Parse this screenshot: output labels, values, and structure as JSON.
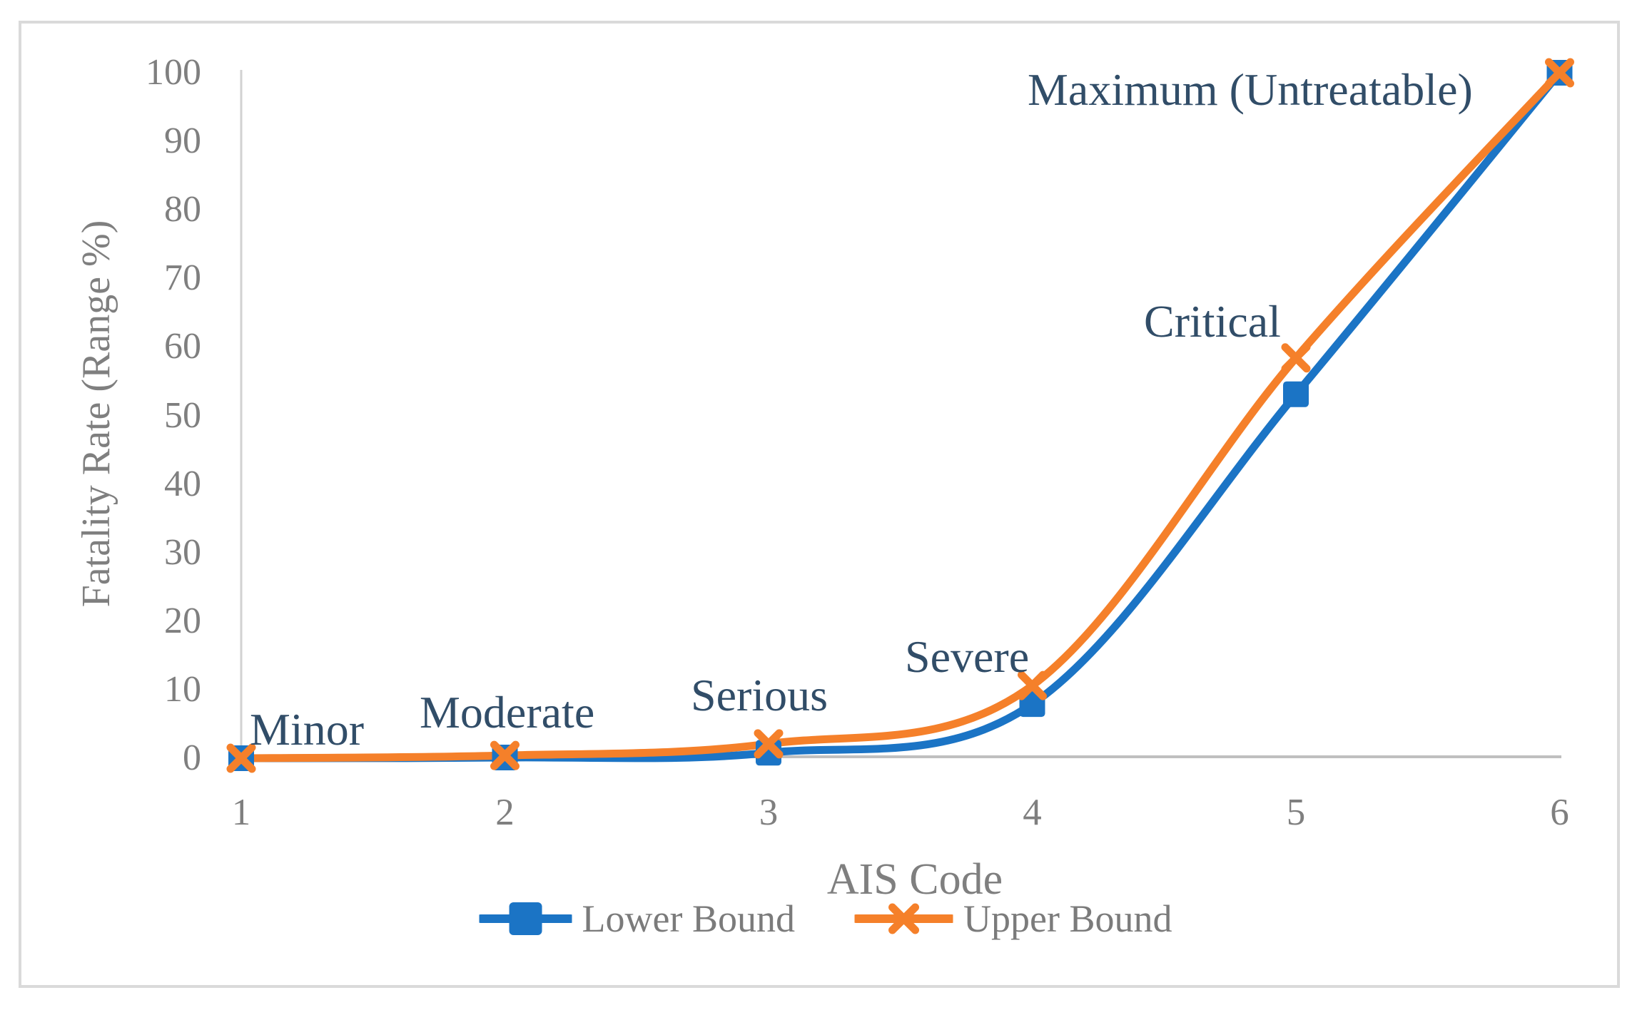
{
  "figure": {
    "kind": "excel-style line chart",
    "background": "#ffffff",
    "frame_color": "#dadada"
  },
  "chart_data": {
    "type": "line",
    "smooth": true,
    "grid": false,
    "title": "",
    "xlabel": "AIS Code",
    "ylabel": "Fatality Rate (Range %)",
    "x": [
      1,
      2,
      3,
      4,
      5,
      6
    ],
    "xlim": [
      1,
      6
    ],
    "ylim": [
      0,
      100
    ],
    "yticks": [
      0,
      10,
      20,
      30,
      40,
      50,
      60,
      70,
      80,
      90,
      100
    ],
    "xticks": [
      "1",
      "2",
      "3",
      "4",
      "5",
      "6"
    ],
    "legend_position": "bottom",
    "series": [
      {
        "name": "Lower Bound",
        "color": "#1b74c5",
        "marker": "square",
        "values": [
          0,
          0.1,
          0.8,
          7.9,
          53.1,
          100
        ]
      },
      {
        "name": "Upper Bound",
        "color": "#f5802a",
        "marker": "x",
        "values": [
          0,
          0.4,
          2.1,
          10.6,
          58.4,
          100
        ]
      }
    ],
    "point_labels": [
      "Minor",
      "Moderate",
      "Serious",
      "Severe",
      "Critical",
      "Maximum (Untreatable)"
    ],
    "annotation_color": "#314d68",
    "axis_line_color": "#bfbfbf",
    "tick_label_color": "#7f7f7f"
  }
}
